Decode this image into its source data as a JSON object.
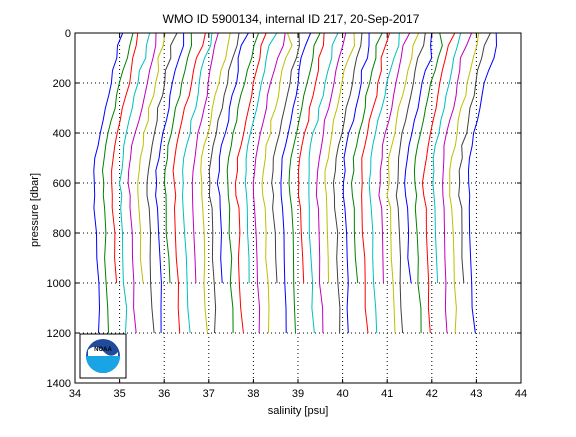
{
  "chart_data": {
    "type": "line",
    "title": "WMO ID 5900134, internal ID 217, 20-Sep-2017",
    "xlabel": "salinity [psu]",
    "ylabel": "pressure [dbar]",
    "xlim": [
      34,
      44
    ],
    "ylim": [
      0,
      1400
    ],
    "y_reversed": true,
    "grid": true,
    "grid_style": "dotted",
    "x_ticks": [
      34,
      35,
      36,
      37,
      38,
      39,
      40,
      41,
      42,
      43,
      44
    ],
    "y_ticks": [
      0,
      200,
      400,
      600,
      800,
      1000,
      1200,
      1400
    ],
    "colors": [
      "#0000ff",
      "#008000",
      "#ff0000",
      "#00bfbf",
      "#bf00bf",
      "#bfbf00",
      "#404040"
    ],
    "profile_offset_psu": 0.2,
    "profile_count": 43,
    "logo": {
      "name": "noaa-logo",
      "text": "NOAA"
    },
    "base_profile": {
      "pressure": [
        0,
        50,
        100,
        150,
        200,
        250,
        300,
        350,
        400,
        450,
        500,
        550,
        600,
        650,
        700,
        800,
        900,
        1000,
        1100,
        1200
      ],
      "salinity": [
        35.05,
        35.0,
        34.92,
        34.85,
        34.8,
        34.74,
        34.68,
        34.62,
        34.56,
        34.5,
        34.46,
        34.43,
        34.42,
        34.43,
        34.45,
        34.47,
        34.49,
        34.51,
        34.53,
        34.55
      ]
    }
  }
}
